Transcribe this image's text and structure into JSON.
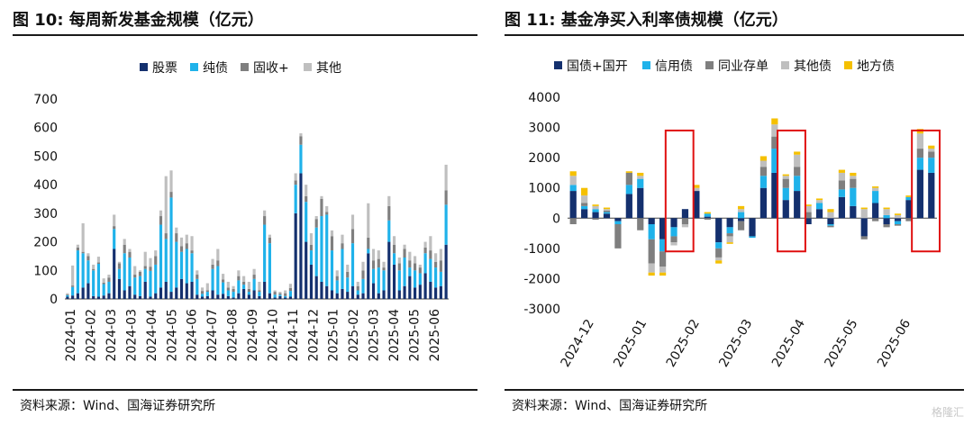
{
  "left": {
    "title": "图 10:  每周新发基金规模（亿元）",
    "source": "资料来源：Wind、国海证券研究所"
  },
  "right": {
    "title": "图 11:  基金净买入利率债规模（亿元）",
    "source": "资料来源：Wind、国海证券研究所"
  },
  "watermark": "格隆汇",
  "chart_data": [
    {
      "type": "bar",
      "stacked": true,
      "title": "图 10:  每周新发基金规模（亿元）",
      "ylim": [
        0,
        700
      ],
      "yticks": [
        0,
        100,
        200,
        300,
        400,
        500,
        600,
        700
      ],
      "x_tick_labels": [
        "2024-01",
        "2024-02",
        "2024-03",
        "2024-03",
        "2024-04",
        "2024-05",
        "2024-06",
        "2024-07",
        "2024-08",
        "2024-09",
        "2024-10",
        "2024-11",
        "2024-12",
        "2025-01",
        "2025-02",
        "2025-03",
        "2025-04",
        "2025-05",
        "2025-06"
      ],
      "legend_position": "top-center",
      "series": [
        {
          "name": "股票",
          "color": "#14306e",
          "values": [
            8,
            12,
            20,
            40,
            55,
            10,
            8,
            12,
            20,
            175,
            70,
            30,
            45,
            15,
            10,
            60,
            8,
            20,
            40,
            60,
            25,
            40,
            70,
            55,
            60,
            15,
            8,
            10,
            30,
            15,
            18,
            10,
            5,
            20,
            35,
            15,
            30,
            10,
            60,
            20,
            5,
            10,
            5,
            8,
            300,
            440,
            200,
            120,
            80,
            60,
            45,
            30,
            20,
            35,
            25,
            45,
            15,
            20,
            160,
            55,
            20,
            30,
            200,
            120,
            30,
            45,
            80,
            40,
            50,
            90,
            60,
            40,
            45,
            190
          ]
        },
        {
          "name": "纯债",
          "color": "#1fb2ea",
          "values": [
            5,
            30,
            150,
            120,
            80,
            90,
            115,
            40,
            40,
            70,
            35,
            130,
            100,
            60,
            70,
            45,
            90,
            100,
            220,
            150,
            330,
            160,
            95,
            120,
            100,
            55,
            10,
            15,
            75,
            100,
            40,
            20,
            20,
            45,
            15,
            10,
            40,
            15,
            200,
            175,
            10,
            5,
            5,
            20,
            100,
            100,
            140,
            50,
            170,
            230,
            250,
            140,
            45,
            140,
            50,
            150,
            15,
            50,
            15,
            50,
            90,
            70,
            75,
            40,
            70,
            100,
            30,
            60,
            40,
            70,
            80,
            70,
            50,
            140
          ]
        },
        {
          "name": "固收+",
          "color": "#7f7f7f",
          "values": [
            3,
            5,
            10,
            5,
            15,
            5,
            5,
            5,
            15,
            10,
            20,
            30,
            20,
            10,
            15,
            10,
            15,
            30,
            30,
            20,
            20,
            30,
            20,
            20,
            10,
            15,
            10,
            5,
            15,
            20,
            10,
            10,
            10,
            15,
            10,
            10,
            15,
            5,
            30,
            20,
            10,
            5,
            10,
            10,
            15,
            30,
            20,
            20,
            30,
            60,
            10,
            50,
            15,
            20,
            20,
            50,
            15,
            30,
            40,
            30,
            30,
            10,
            50,
            30,
            25,
            30,
            25,
            25,
            20,
            20,
            30,
            20,
            40,
            50
          ]
        },
        {
          "name": "其他",
          "color": "#bfbfbf",
          "values": [
            4,
            70,
            10,
            100,
            10,
            15,
            20,
            15,
            10,
            40,
            5,
            20,
            10,
            30,
            5,
            50,
            30,
            20,
            20,
            200,
            75,
            20,
            30,
            30,
            50,
            15,
            12,
            25,
            20,
            40,
            20,
            20,
            10,
            20,
            20,
            25,
            20,
            30,
            20,
            10,
            5,
            5,
            10,
            15,
            25,
            10,
            40,
            40,
            10,
            10,
            20,
            20,
            20,
            30,
            25,
            50,
            15,
            30,
            120,
            40,
            30,
            20,
            35,
            30,
            20,
            15,
            30,
            25,
            10,
            20,
            50,
            30,
            40,
            90
          ]
        }
      ]
    },
    {
      "type": "bar",
      "stacked": true,
      "title": "图 11:  基金净买入利率债规模（亿元）",
      "ylim": [
        -3000,
        4000
      ],
      "yticks": [
        -3000,
        -2000,
        -1000,
        0,
        1000,
        2000,
        3000,
        4000
      ],
      "x_tick_labels": [
        "2024-12",
        "2025-01",
        "2025-02",
        "2025-03",
        "2025-04",
        "2025-05",
        "2025-06"
      ],
      "legend_position": "top-center",
      "highlight_boxes_around_months": [
        "2025-01",
        "2025-04",
        "2025-06"
      ],
      "series": [
        {
          "name": "国债+国开",
          "color": "#14306e",
          "values": [
            900,
            300,
            200,
            150,
            -100,
            800,
            1000,
            -200,
            -700,
            -300,
            300,
            900,
            50,
            -800,
            -300,
            -100,
            -600,
            1000,
            1500,
            600,
            900,
            -200,
            300,
            -200,
            700,
            400,
            -600,
            500,
            -200,
            -100,
            600,
            1600,
            1500
          ]
        },
        {
          "name": "信用债",
          "color": "#1fb2ea",
          "values": [
            200,
            100,
            100,
            50,
            -100,
            300,
            300,
            -500,
            -400,
            -300,
            0,
            0,
            100,
            -200,
            -200,
            200,
            -50,
            400,
            800,
            400,
            500,
            0,
            200,
            -50,
            250,
            600,
            0,
            400,
            100,
            -100,
            100,
            400,
            500
          ]
        },
        {
          "name": "同业存单",
          "color": "#7f7f7f",
          "values": [
            -200,
            100,
            -50,
            50,
            -800,
            400,
            -400,
            -800,
            -500,
            -200,
            -200,
            0,
            -50,
            -300,
            -100,
            -300,
            0,
            300,
            400,
            300,
            300,
            200,
            0,
            -50,
            300,
            300,
            -100,
            -100,
            -100,
            -50,
            -100,
            300,
            200
          ]
        },
        {
          "name": "其他债",
          "color": "#bfbfbf",
          "values": [
            300,
            250,
            100,
            50,
            0,
            0,
            100,
            -300,
            -200,
            -100,
            -100,
            100,
            0,
            -100,
            -200,
            100,
            0,
            200,
            400,
            100,
            400,
            200,
            100,
            200,
            250,
            100,
            300,
            100,
            200,
            100,
            0,
            500,
            100
          ]
        },
        {
          "name": "地方债",
          "color": "#f5c000",
          "values": [
            150,
            250,
            50,
            50,
            0,
            50,
            100,
            -100,
            -100,
            0,
            0,
            100,
            50,
            -100,
            -50,
            100,
            0,
            150,
            200,
            50,
            100,
            50,
            50,
            100,
            100,
            100,
            50,
            50,
            50,
            50,
            50,
            150,
            100
          ]
        }
      ]
    }
  ]
}
